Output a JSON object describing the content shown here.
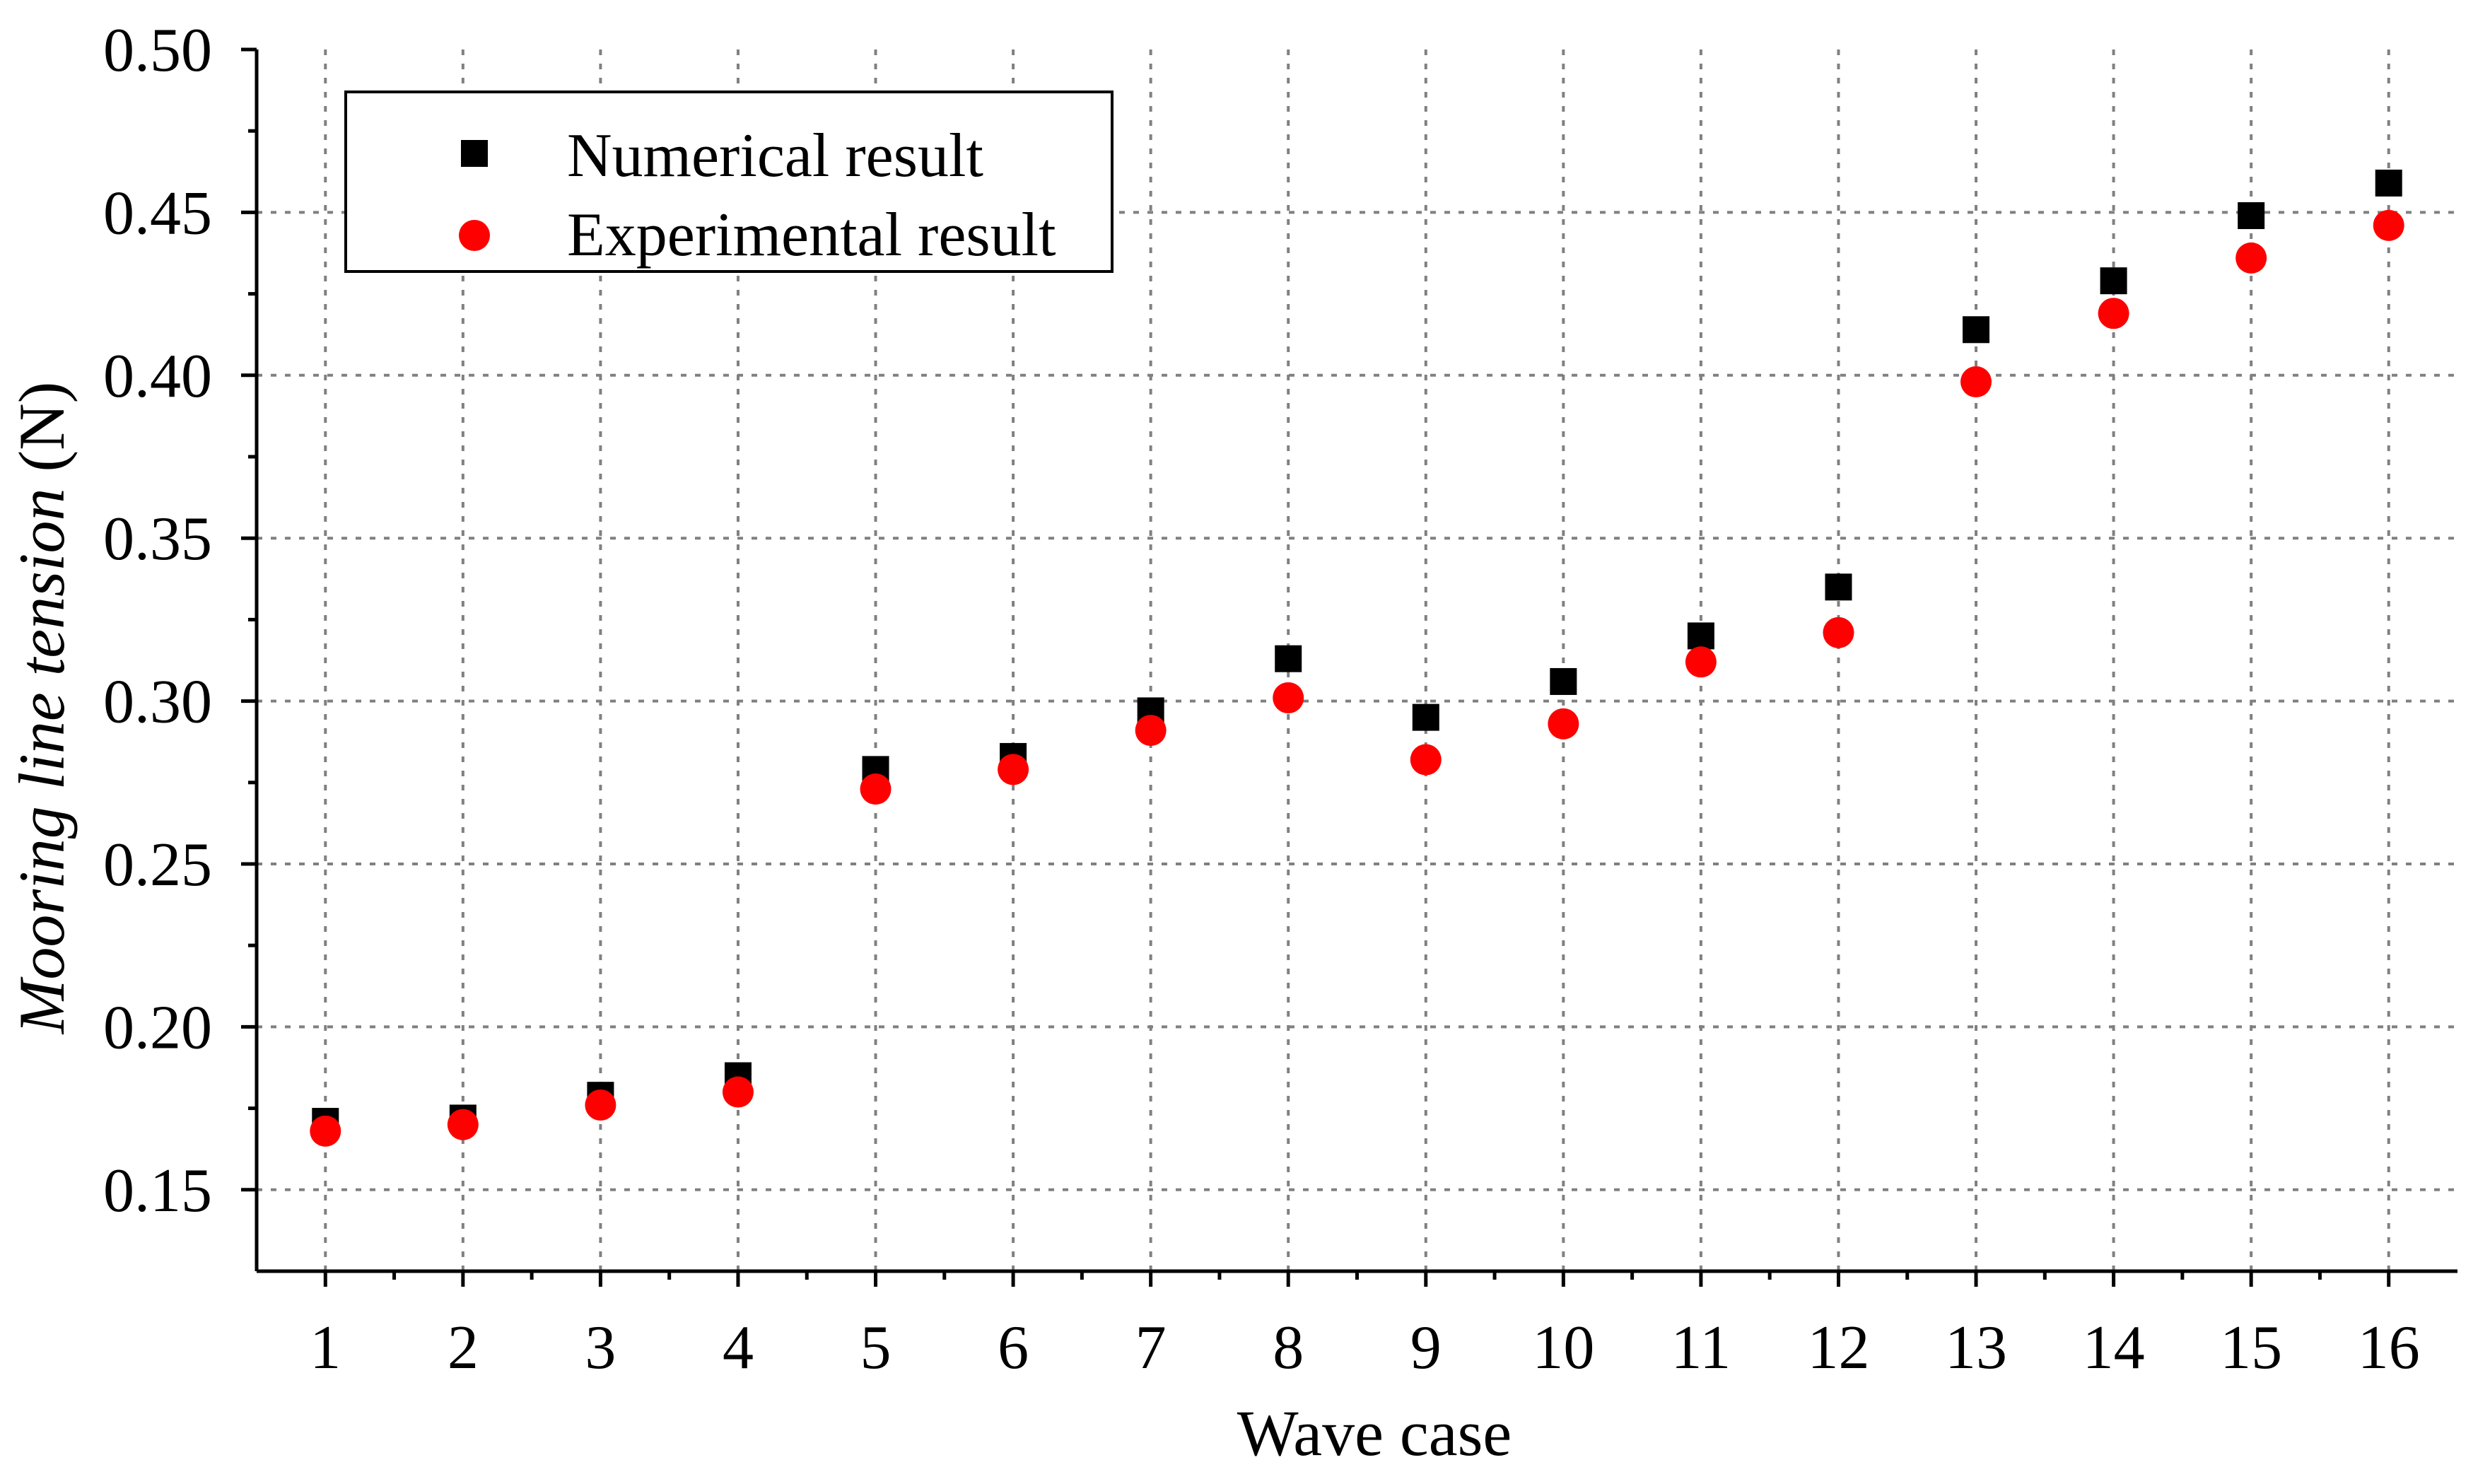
{
  "chart_data": {
    "type": "scatter",
    "title": "",
    "xlabel": "Wave case",
    "ylabel_italic": "Mooring line tension",
    "ylabel_unit": " (N)",
    "xlim": [
      0.5,
      16.5
    ],
    "ylim": [
      0.125,
      0.5
    ],
    "x_ticks": [
      1,
      2,
      3,
      4,
      5,
      6,
      7,
      8,
      9,
      10,
      11,
      12,
      13,
      14,
      15,
      16
    ],
    "x_tick_labels": [
      "1",
      "2",
      "3",
      "4",
      "5",
      "6",
      "7",
      "8",
      "9",
      "10",
      "11",
      "12",
      "13",
      "14",
      "15",
      "16"
    ],
    "y_ticks": [
      0.15,
      0.2,
      0.25,
      0.3,
      0.35,
      0.4,
      0.45,
      0.5
    ],
    "y_tick_labels": [
      "0.15",
      "0.20",
      "0.25",
      "0.30",
      "0.35",
      "0.40",
      "0.45",
      "0.50"
    ],
    "grid": true,
    "legend_position": "top-left",
    "series": [
      {
        "name": "Numerical result",
        "marker": "square",
        "color": "#000000",
        "x": [
          1,
          2,
          3,
          4,
          5,
          6,
          7,
          8,
          9,
          10,
          11,
          12,
          13,
          14,
          15,
          16
        ],
        "values": [
          0.171,
          0.172,
          0.179,
          0.185,
          0.279,
          0.283,
          0.297,
          0.313,
          0.295,
          0.306,
          0.32,
          0.335,
          0.414,
          0.429,
          0.449,
          0.459
        ]
      },
      {
        "name": "Experimental result",
        "marker": "circle",
        "color": "#ff0000",
        "x": [
          1,
          2,
          3,
          4,
          5,
          6,
          7,
          8,
          9,
          10,
          11,
          12,
          13,
          14,
          15,
          16
        ],
        "values": [
          0.168,
          0.17,
          0.176,
          0.18,
          0.273,
          0.279,
          0.291,
          0.301,
          0.282,
          0.293,
          0.312,
          0.321,
          0.398,
          0.419,
          0.436,
          0.446
        ]
      }
    ]
  }
}
